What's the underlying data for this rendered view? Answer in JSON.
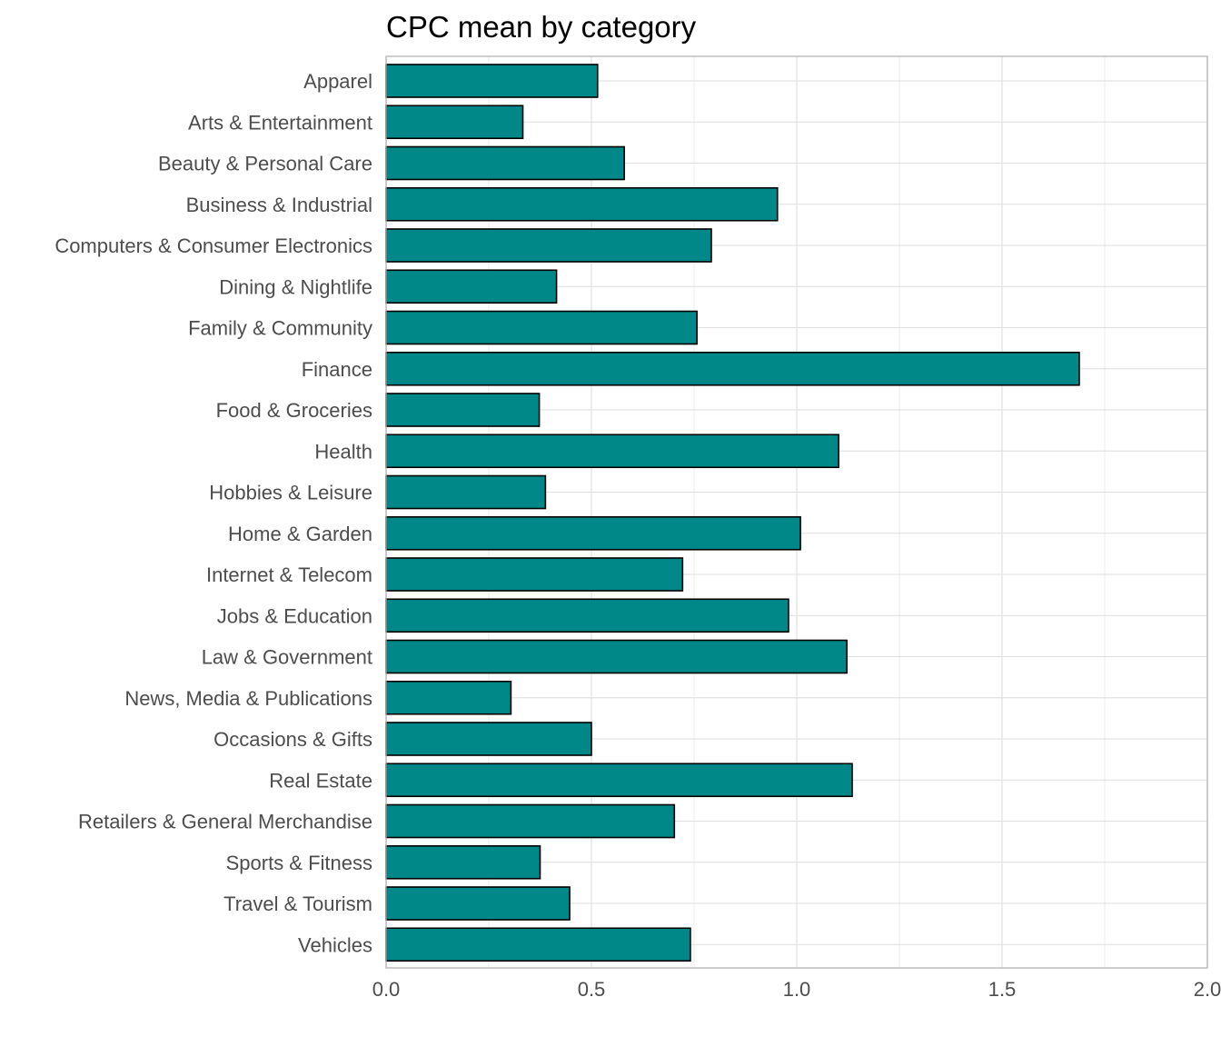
{
  "chart_data": {
    "type": "bar",
    "orientation": "horizontal",
    "title": "CPC mean by category",
    "xlabel": "",
    "ylabel": "",
    "xlim": [
      0,
      2
    ],
    "x_ticks": [
      "0.0",
      "0.5",
      "1.0",
      "1.5",
      "2.0"
    ],
    "x_tick_values": [
      0,
      0.5,
      1.0,
      1.5,
      2.0
    ],
    "grid": true,
    "categories": [
      "Apparel",
      "Arts & Entertainment",
      "Beauty & Personal Care",
      "Business & Industrial",
      "Computers & Consumer Electronics",
      "Dining & Nightlife",
      "Family & Community",
      "Finance",
      "Food & Groceries",
      "Health",
      "Hobbies & Leisure",
      "Home & Garden",
      "Internet & Telecom",
      "Jobs & Education",
      "Law & Government",
      "News, Media & Publications",
      "Occasions & Gifts",
      "Real Estate",
      "Retailers & General Merchandise",
      "Sports & Fitness",
      "Travel & Tourism",
      "Vehicles"
    ],
    "values": [
      0.515,
      0.333,
      0.58,
      0.953,
      0.792,
      0.415,
      0.757,
      1.688,
      0.373,
      1.102,
      0.388,
      1.009,
      0.722,
      0.98,
      1.122,
      0.304,
      0.5,
      1.135,
      0.702,
      0.375,
      0.447,
      0.741
    ],
    "colors": {
      "bar_fill": "#008787",
      "bar_stroke": "#000000",
      "grid": "#dedede",
      "panel_border": "#b3b3b3",
      "label_text": "#4d4d4d"
    }
  }
}
